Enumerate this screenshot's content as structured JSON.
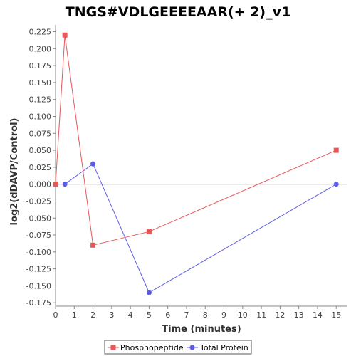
{
  "chart_data": {
    "type": "line",
    "title": "TNGS#VDLGEEEEAAR(+ 2)_v1",
    "xlabel": "Time (minutes)",
    "ylabel": "log2(dDAVP/Control)",
    "xlim": [
      0,
      15.6
    ],
    "ylim": [
      -0.18,
      0.235
    ],
    "xticks": [
      0,
      1,
      2,
      3,
      4,
      5,
      6,
      7,
      8,
      9,
      10,
      11,
      12,
      13,
      14,
      15
    ],
    "yticks": [
      -0.175,
      -0.15,
      -0.125,
      -0.1,
      -0.075,
      -0.05,
      -0.025,
      0.0,
      0.025,
      0.05,
      0.075,
      0.1,
      0.125,
      0.15,
      0.175,
      0.2,
      0.225
    ],
    "ytick_labels": [
      "-0.175",
      "-0.150",
      "-0.125",
      "-0.100",
      "-0.075",
      "-0.050",
      "-0.025",
      "0.000",
      "0.025",
      "0.050",
      "0.075",
      "0.100",
      "0.125",
      "0.150",
      "0.175",
      "0.200",
      "0.225"
    ],
    "reference_line_y": 0,
    "grid": false,
    "legend_position": "bottom",
    "series": [
      {
        "name": "Phosphopeptide",
        "color": "#e8575a",
        "marker": "square",
        "x": [
          0,
          0.5,
          2,
          5,
          15
        ],
        "y": [
          0.0,
          0.22,
          -0.09,
          -0.07,
          0.05
        ]
      },
      {
        "name": "Total Protein",
        "color": "#5b5be6",
        "marker": "circle",
        "x": [
          0.5,
          2,
          5,
          15
        ],
        "y": [
          0.0,
          0.03,
          -0.16,
          0.0
        ]
      }
    ]
  }
}
